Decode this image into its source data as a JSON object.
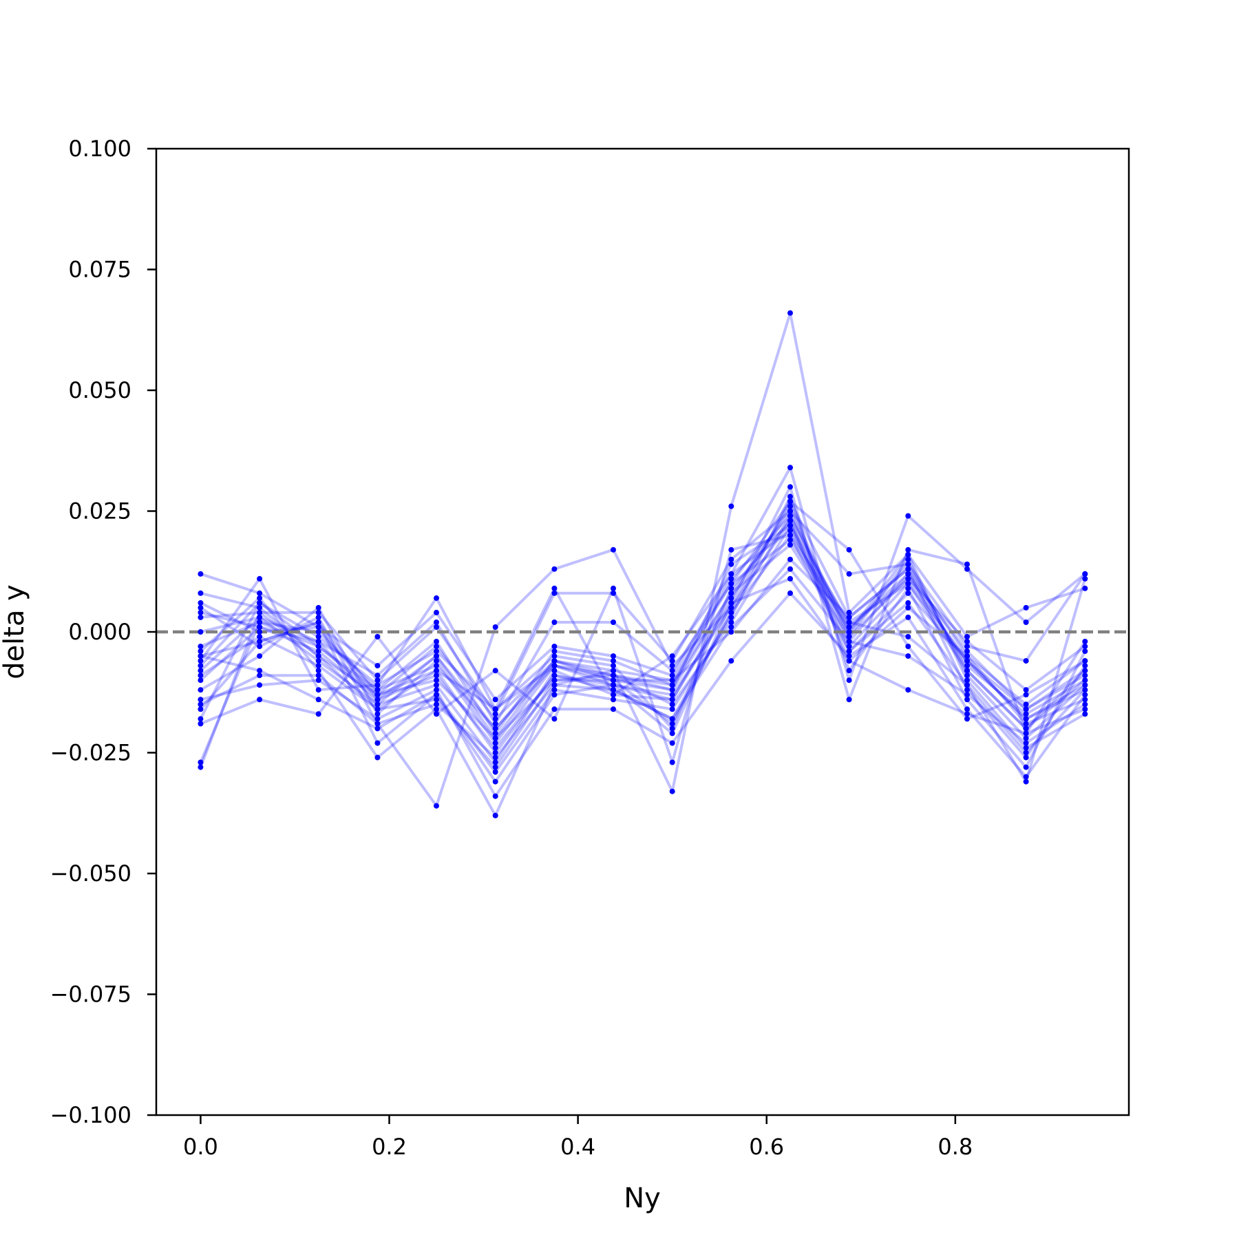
{
  "chart_data": {
    "type": "line",
    "xlabel": "Ny",
    "ylabel": "delta y",
    "xlim": [
      -0.047,
      0.984
    ],
    "ylim": [
      -0.1,
      0.1
    ],
    "xticks": [
      0.0,
      0.2,
      0.4,
      0.6,
      0.8
    ],
    "xtick_labels": [
      "0.0",
      "0.2",
      "0.4",
      "0.6",
      "0.8"
    ],
    "yticks": [
      -0.1,
      -0.075,
      -0.05,
      -0.025,
      0.0,
      0.025,
      0.05,
      0.075,
      0.1
    ],
    "ytick_labels": [
      "−0.100",
      "−0.075",
      "−0.050",
      "−0.025",
      "0.000",
      "0.025",
      "0.050",
      "0.075",
      "0.100"
    ],
    "reference_line": {
      "y": 0.0,
      "style": "dashed",
      "color": "#808080"
    },
    "grid": false,
    "legend": "none",
    "series_color": "#0000ff",
    "x": [
      0.0,
      0.0625,
      0.125,
      0.1875,
      0.25,
      0.3125,
      0.375,
      0.4375,
      0.5,
      0.5625,
      0.625,
      0.6875,
      0.75,
      0.8125,
      0.875,
      0.9375
    ],
    "series": [
      {
        "values": [
          0.012,
          0.008,
          0.001,
          -0.014,
          -0.005,
          -0.02,
          -0.006,
          -0.01,
          -0.012,
          0.008,
          0.025,
          -0.002,
          0.012,
          -0.004,
          -0.016,
          -0.008
        ]
      },
      {
        "values": [
          -0.028,
          0.004,
          -0.005,
          -0.016,
          -0.008,
          -0.025,
          -0.009,
          -0.012,
          -0.018,
          0.004,
          0.024,
          0.0,
          0.014,
          -0.008,
          -0.02,
          -0.01
        ]
      },
      {
        "values": [
          -0.027,
          0.002,
          -0.003,
          -0.013,
          -0.01,
          -0.022,
          -0.01,
          -0.009,
          -0.015,
          0.002,
          0.022,
          0.002,
          0.01,
          -0.006,
          -0.018,
          -0.012
        ]
      },
      {
        "values": [
          0.005,
          -0.003,
          0.003,
          -0.019,
          -0.036,
          0.001,
          0.013,
          0.017,
          -0.007,
          0.005,
          0.027,
          0.017,
          -0.003,
          -0.018,
          -0.013,
          -0.006
        ]
      },
      {
        "values": [
          -0.004,
          0.007,
          -0.008,
          -0.026,
          -0.016,
          -0.038,
          -0.011,
          -0.008,
          -0.033,
          0.026,
          0.066,
          0.004,
          0.016,
          -0.01,
          -0.024,
          -0.017
        ]
      },
      {
        "values": [
          -0.006,
          0.011,
          -0.012,
          -0.011,
          0.007,
          -0.016,
          0.009,
          -0.013,
          -0.005,
          0.012,
          0.034,
          -0.01,
          0.024,
          0.013,
          0.002,
          0.012
        ]
      },
      {
        "values": [
          -0.019,
          -0.014,
          -0.017,
          -0.001,
          -0.017,
          -0.008,
          -0.018,
          0.009,
          -0.027,
          0.017,
          0.02,
          0.002,
          -0.001,
          -0.011,
          -0.031,
          0.011
        ]
      },
      {
        "values": [
          -0.016,
          -0.002,
          0.002,
          -0.023,
          -0.013,
          -0.031,
          -0.013,
          -0.011,
          -0.021,
          0.006,
          0.03,
          -0.014,
          0.017,
          0.014,
          -0.021,
          -0.016
        ]
      },
      {
        "values": [
          0.008,
          0.005,
          -0.005,
          -0.013,
          -0.003,
          -0.018,
          -0.006,
          -0.009,
          -0.012,
          0.014,
          0.022,
          -0.004,
          0.008,
          -0.006,
          -0.016,
          -0.009
        ]
      },
      {
        "values": [
          0.004,
          0.001,
          -0.002,
          -0.009,
          0.002,
          -0.019,
          0.002,
          0.002,
          -0.008,
          0.01,
          0.019,
          0.001,
          0.011,
          -0.002,
          -0.012,
          -0.003
        ]
      },
      {
        "values": [
          -0.008,
          0.003,
          -0.006,
          -0.015,
          -0.011,
          -0.027,
          -0.008,
          -0.013,
          -0.014,
          0.007,
          0.026,
          -0.001,
          0.015,
          -0.009,
          -0.022,
          -0.011
        ]
      },
      {
        "values": [
          -0.012,
          -0.005,
          0.005,
          -0.017,
          -0.006,
          -0.023,
          -0.007,
          -0.01,
          -0.01,
          0.0,
          0.015,
          0.003,
          0.013,
          -0.012,
          -0.026,
          -0.007
        ]
      },
      {
        "values": [
          -0.018,
          0.006,
          -0.001,
          -0.011,
          -0.004,
          -0.016,
          -0.005,
          -0.007,
          -0.02,
          0.009,
          0.023,
          -0.006,
          0.005,
          -0.005,
          -0.019,
          -0.014
        ]
      },
      {
        "values": [
          -0.005,
          -0.008,
          -0.014,
          -0.02,
          -0.013,
          -0.029,
          -0.012,
          -0.014,
          -0.016,
          0.003,
          0.028,
          -0.008,
          0.009,
          -0.014,
          -0.028,
          -0.004
        ]
      },
      {
        "values": [
          0.006,
          0.0,
          0.001,
          -0.007,
          0.004,
          -0.014,
          -0.003,
          -0.005,
          -0.009,
          0.012,
          0.021,
          0.0,
          0.016,
          -0.001,
          0.005,
          0.009
        ]
      },
      {
        "values": [
          -0.014,
          -0.011,
          -0.01,
          -0.018,
          -0.012,
          -0.034,
          -0.016,
          -0.016,
          -0.023,
          -0.006,
          0.008,
          -0.005,
          0.003,
          -0.016,
          -0.03,
          -0.013
        ]
      },
      {
        "values": [
          -0.003,
          0.002,
          0.0,
          -0.012,
          -0.002,
          -0.021,
          -0.004,
          -0.006,
          -0.011,
          0.011,
          0.024,
          0.001,
          0.012,
          -0.007,
          -0.017,
          -0.01
        ]
      },
      {
        "values": [
          -0.01,
          0.001,
          -0.004,
          -0.014,
          -0.009,
          -0.024,
          -0.009,
          -0.011,
          -0.013,
          0.005,
          0.023,
          -0.003,
          0.01,
          -0.008,
          -0.02,
          -0.008
        ]
      },
      {
        "values": [
          -0.015,
          -0.009,
          -0.009,
          -0.019,
          -0.015,
          -0.026,
          -0.011,
          -0.012,
          -0.018,
          0.001,
          0.013,
          -0.002,
          -0.005,
          -0.013,
          -0.023,
          -0.015
        ]
      },
      {
        "values": [
          0.003,
          0.004,
          0.004,
          -0.01,
          0.001,
          -0.017,
          0.008,
          0.008,
          -0.006,
          0.015,
          0.025,
          0.012,
          0.014,
          -0.003,
          -0.006,
          0.012
        ]
      },
      {
        "values": [
          -0.007,
          0.006,
          -0.003,
          -0.012,
          -0.007,
          -0.02,
          -0.007,
          -0.009,
          -0.011,
          0.008,
          0.018,
          -0.001,
          0.011,
          -0.006,
          -0.018,
          -0.011
        ]
      },
      {
        "values": [
          -0.009,
          -0.001,
          -0.007,
          -0.016,
          -0.014,
          -0.028,
          -0.01,
          -0.01,
          -0.019,
          0.004,
          0.02,
          -0.004,
          0.006,
          -0.011,
          -0.025,
          -0.012
        ]
      },
      {
        "values": [
          0.0,
          0.003,
          -0.002,
          -0.015,
          -0.005,
          -0.022,
          -0.006,
          -0.008,
          -0.01,
          0.01,
          0.027,
          0.003,
          0.013,
          -0.005,
          -0.015,
          -0.006
        ]
      },
      {
        "values": [
          -0.005,
          -0.002,
          0.002,
          -0.013,
          -0.008,
          -0.016,
          -0.007,
          -0.011,
          -0.014,
          0.006,
          0.011,
          -0.006,
          -0.012,
          -0.017,
          -0.021,
          -0.002
        ]
      }
    ]
  }
}
